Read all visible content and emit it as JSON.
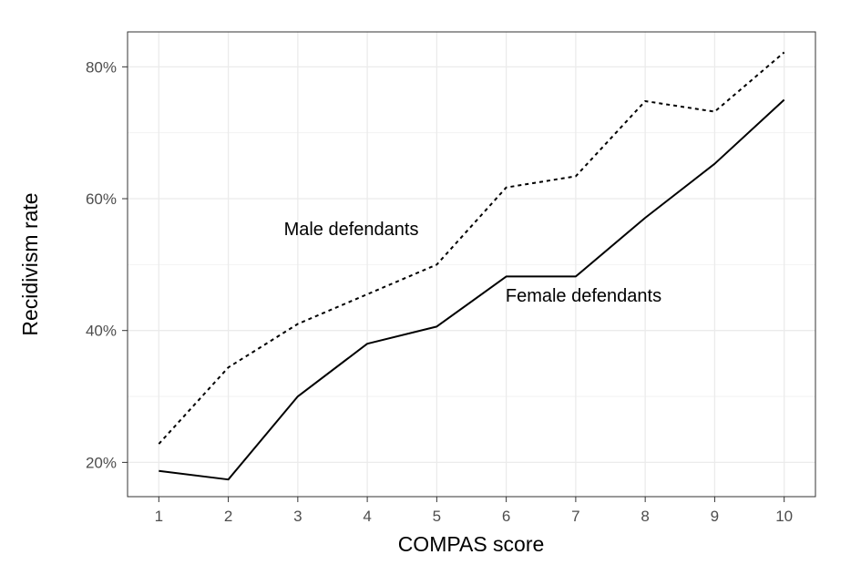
{
  "chart_data": {
    "type": "line",
    "xlabel": "COMPAS score",
    "ylabel": "Recidivism rate",
    "x": [
      1,
      2,
      3,
      4,
      5,
      6,
      7,
      8,
      9,
      10
    ],
    "xlim": [
      0.55,
      10.45
    ],
    "ylim": [
      0.148,
      0.853
    ],
    "x_ticks": [
      1,
      2,
      3,
      4,
      5,
      6,
      7,
      8,
      9,
      10
    ],
    "x_tick_labels": [
      "1",
      "2",
      "3",
      "4",
      "5",
      "6",
      "7",
      "8",
      "9",
      "10"
    ],
    "y_ticks": [
      0.2,
      0.4,
      0.6,
      0.8
    ],
    "y_tick_labels": [
      "20%",
      "40%",
      "60%",
      "80%"
    ],
    "grid": true,
    "series": [
      {
        "name": "Male defendants",
        "line_style": "dotted",
        "color": "#000000",
        "values": [
          0.228,
          0.344,
          0.41,
          0.455,
          0.5,
          0.617,
          0.634,
          0.748,
          0.732,
          0.822
        ]
      },
      {
        "name": "Female defendants",
        "line_style": "solid",
        "color": "#000000",
        "values": [
          0.187,
          0.174,
          0.3,
          0.38,
          0.406,
          0.482,
          0.482,
          0.571,
          0.653,
          0.75
        ]
      }
    ],
    "annotations": [
      {
        "text": "Male defendants",
        "x": 2.8,
        "y": 0.545
      },
      {
        "text": "Female defendants",
        "x": 5.99,
        "y": 0.444
      }
    ]
  }
}
